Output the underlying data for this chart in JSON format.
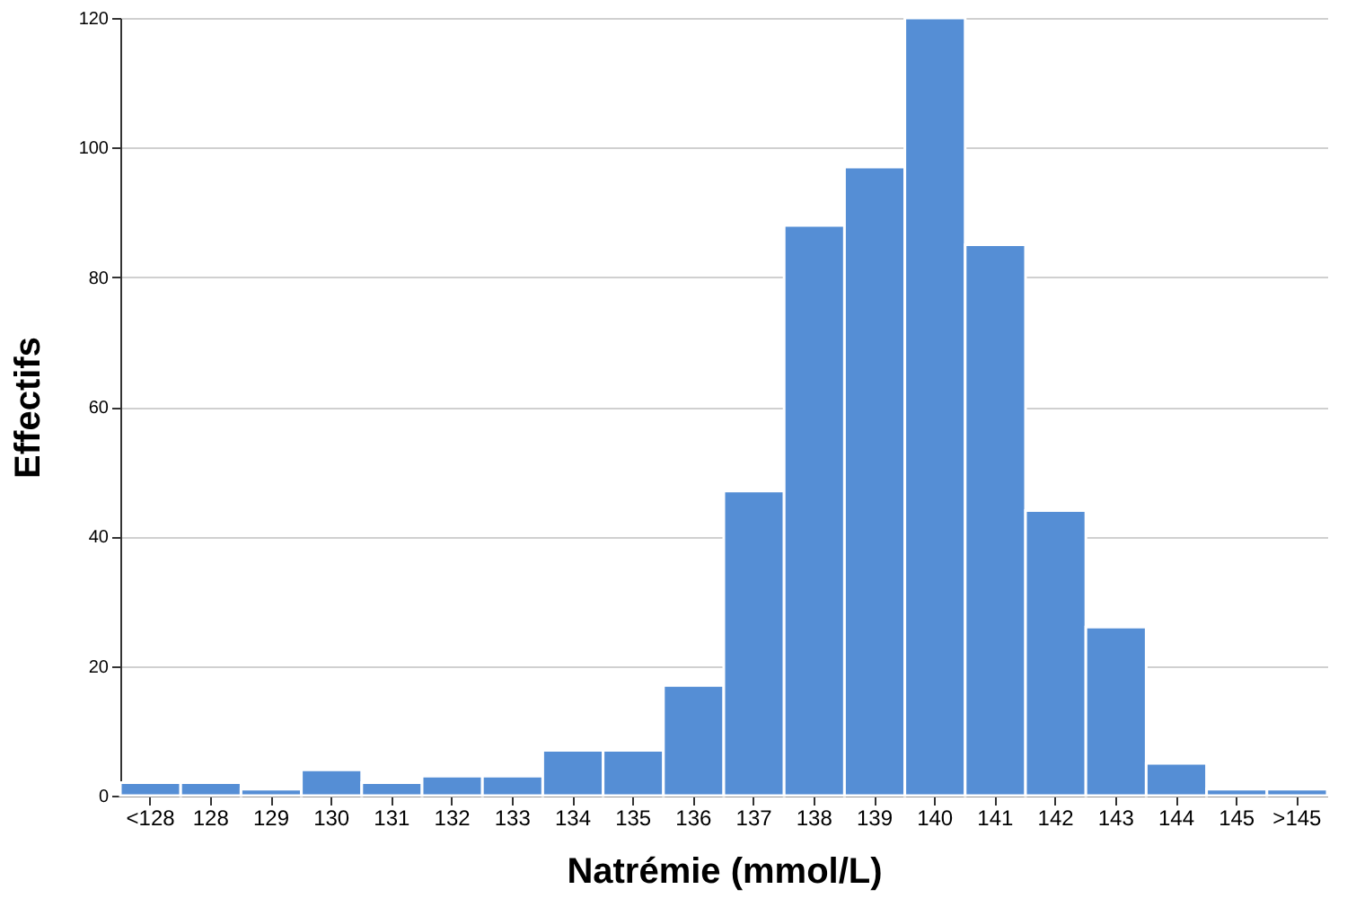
{
  "chart_data": {
    "type": "bar",
    "xlabel": "Natrémie (mmol/L)",
    "ylabel": "Effectifs",
    "categories": [
      "<128",
      "128",
      "129",
      "130",
      "131",
      "132",
      "133",
      "134",
      "135",
      "136",
      "137",
      "138",
      "139",
      "140",
      "141",
      "142",
      "143",
      "144",
      "145",
      ">145"
    ],
    "values": [
      2,
      2,
      1,
      4,
      2,
      3,
      3,
      7,
      7,
      17,
      47,
      88,
      97,
      120,
      85,
      44,
      26,
      5,
      1,
      1
    ],
    "color": "#558ed5",
    "ylim": [
      0,
      120
    ],
    "yticks": [
      0,
      20,
      40,
      60,
      80,
      100,
      120
    ],
    "grid": "y"
  }
}
